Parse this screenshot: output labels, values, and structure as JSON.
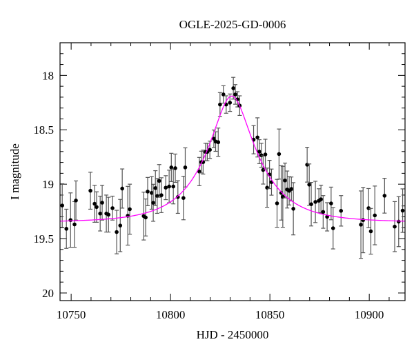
{
  "chart_data": {
    "type": "scatter",
    "title": "OGLE-2025-GD-0006",
    "xlabel": "HJD - 2450000",
    "ylabel": "I magnitude",
    "xlim": [
      10744.4,
      10918
    ],
    "ylim": [
      20.07,
      17.7
    ],
    "y_inverted": true,
    "x_ticks": [
      10750,
      10800,
      10850,
      10900
    ],
    "x_tick_labels": [
      "10750",
      "10800",
      "10850",
      "10900"
    ],
    "y_ticks": [
      18,
      18.5,
      19,
      19.5,
      20
    ],
    "y_tick_labels": [
      "18",
      "18.5",
      "19",
      "19.5",
      "20"
    ],
    "grid": false,
    "colors": {
      "points": "#000000",
      "errorbars": "#555555",
      "model": "#ff00ff"
    },
    "points": [
      [
        10745.5,
        19.196,
        0.2
      ],
      [
        10747.6,
        19.41,
        0.18
      ],
      [
        10749.7,
        19.33,
        0.25
      ],
      [
        10751.7,
        19.37,
        0.21
      ],
      [
        10752.4,
        19.15,
        0.18
      ],
      [
        10759.7,
        19.06,
        0.17
      ],
      [
        10761.8,
        19.18,
        0.17
      ],
      [
        10762.8,
        19.21,
        0.14
      ],
      [
        10764.6,
        19.27,
        0.16
      ],
      [
        10765.6,
        19.17,
        0.16
      ],
      [
        10767.7,
        19.27,
        0.17
      ],
      [
        10768.8,
        19.28,
        0.16
      ],
      [
        10770.8,
        19.22,
        0.11
      ],
      [
        10772.9,
        19.44,
        0.2
      ],
      [
        10774.7,
        19.38,
        0.24
      ],
      [
        10775.7,
        19.04,
        0.18
      ],
      [
        10778.5,
        19.29,
        0.27
      ],
      [
        10779.5,
        19.23,
        0.23
      ],
      [
        10786.5,
        19.293,
        0.22
      ],
      [
        10787.5,
        19.306,
        0.17
      ],
      [
        10788.5,
        19.068,
        0.13
      ],
      [
        10790.5,
        19.08,
        0.15
      ],
      [
        10791.3,
        19.171,
        0.17
      ],
      [
        10792.4,
        19.036,
        0.16
      ],
      [
        10793.3,
        19.108,
        0.16
      ],
      [
        10794.3,
        18.97,
        0.15
      ],
      [
        10795.4,
        19.101,
        0.16
      ],
      [
        10797.6,
        19.032,
        0.11
      ],
      [
        10799.3,
        19.021,
        0.15
      ],
      [
        10800.4,
        18.846,
        0.13
      ],
      [
        10801.4,
        19.021,
        0.16
      ],
      [
        10802.4,
        18.853,
        0.13
      ],
      [
        10803.7,
        19.118,
        0.15
      ],
      [
        10806.5,
        19.127,
        0.2
      ],
      [
        10807.4,
        18.846,
        0.18
      ],
      [
        10814.5,
        18.884,
        0.13
      ],
      [
        10815.5,
        18.797,
        0.1
      ],
      [
        10816.4,
        18.797,
        0.11
      ],
      [
        10817.6,
        18.704,
        0.08
      ],
      [
        10818.5,
        18.704,
        0.08
      ],
      [
        10819.8,
        18.684,
        0.08
      ],
      [
        10821.8,
        18.582,
        0.08
      ],
      [
        10822.7,
        18.608,
        0.09
      ],
      [
        10824.0,
        18.614,
        0.13
      ],
      [
        10824.9,
        18.268,
        0.11
      ],
      [
        10826.6,
        18.175,
        0.08
      ],
      [
        10828.0,
        18.268,
        0.08
      ],
      [
        10829.9,
        18.251,
        0.08
      ],
      [
        10831.6,
        18.118,
        0.1
      ],
      [
        10832.6,
        18.175,
        0.09
      ],
      [
        10833.7,
        18.22,
        0.07
      ],
      [
        10834.8,
        18.278,
        0.09
      ],
      [
        10841.8,
        18.591,
        0.13
      ],
      [
        10843.75,
        18.57,
        0.18
      ],
      [
        10844.7,
        18.701,
        0.11
      ],
      [
        10845.7,
        18.734,
        0.11
      ],
      [
        10846.6,
        18.869,
        0.13
      ],
      [
        10847.7,
        18.727,
        0.14
      ],
      [
        10848.6,
        19.032,
        0.18
      ],
      [
        10849.8,
        18.911,
        0.13
      ],
      [
        10850.8,
        18.981,
        0.12
      ],
      [
        10853.6,
        19.176,
        0.22
      ],
      [
        10854.6,
        18.723,
        0.23
      ],
      [
        10855.7,
        19.08,
        0.25
      ],
      [
        10856.5,
        19.116,
        0.28
      ],
      [
        10857.6,
        18.966,
        0.16
      ],
      [
        10858.7,
        19.049,
        0.17
      ],
      [
        10859.7,
        19.061,
        0.13
      ],
      [
        10860.8,
        19.044,
        0.11
      ],
      [
        10861.8,
        19.226,
        0.24
      ],
      [
        10868.75,
        18.821,
        0.16
      ],
      [
        10869.8,
        19.004,
        0.19
      ],
      [
        10870.8,
        19.184,
        0.2
      ],
      [
        10872.9,
        19.163,
        0.19
      ],
      [
        10874.65,
        19.152,
        0.11
      ],
      [
        10875.7,
        19.139,
        0.13
      ],
      [
        10876.8,
        19.255,
        0.15
      ],
      [
        10878.8,
        19.3,
        0.13
      ],
      [
        10880.8,
        19.177,
        0.15
      ],
      [
        10881.8,
        19.405,
        0.19
      ],
      [
        10885.8,
        19.245,
        0.14
      ],
      [
        10895.8,
        19.372,
        0.31
      ],
      [
        10896.9,
        19.33,
        0.3
      ],
      [
        10899.65,
        19.22,
        0.18
      ],
      [
        10900.8,
        19.433,
        0.21
      ],
      [
        10902.8,
        19.287,
        0.27
      ],
      [
        10907.7,
        19.106,
        0.16
      ],
      [
        10912.8,
        19.39,
        0.23
      ],
      [
        10914.8,
        19.344,
        0.23
      ],
      [
        10916.8,
        19.243,
        0.2
      ]
    ],
    "model": {
      "type": "PSPL",
      "t0": 10830.8,
      "u0": 0.36,
      "tE": 24.6,
      "baseline_mag": 19.35
    }
  }
}
